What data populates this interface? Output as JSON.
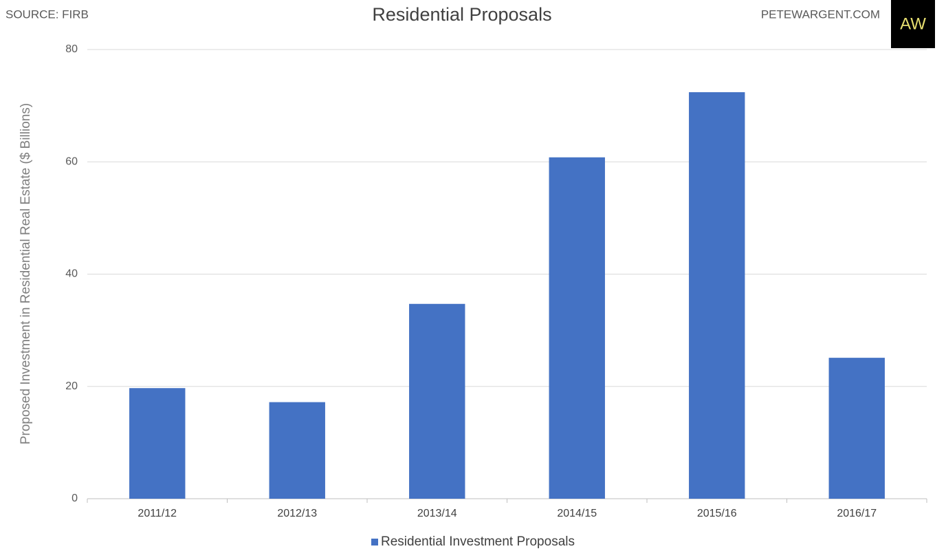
{
  "chart_data": {
    "type": "bar",
    "title": "Residential Proposals",
    "source": "SOURCE: FIRB",
    "site": "PETEWARGENT.COM",
    "logo": "AW",
    "y_label": "Proposed Investment in Residential Real Estate ($ Billions)",
    "categories": [
      "2011/12",
      "2012/13",
      "2013/14",
      "2014/15",
      "2015/16",
      "2016/17"
    ],
    "series": [
      {
        "name": "Residential Investment Proposals",
        "color": "#4472c4",
        "values": [
          19.7,
          17.2,
          34.7,
          60.8,
          72.4,
          25.1
        ]
      }
    ],
    "ylim": [
      0,
      80
    ],
    "yticks": [
      0,
      20,
      40,
      60,
      80
    ],
    "grid": true,
    "legend": "bottom"
  }
}
